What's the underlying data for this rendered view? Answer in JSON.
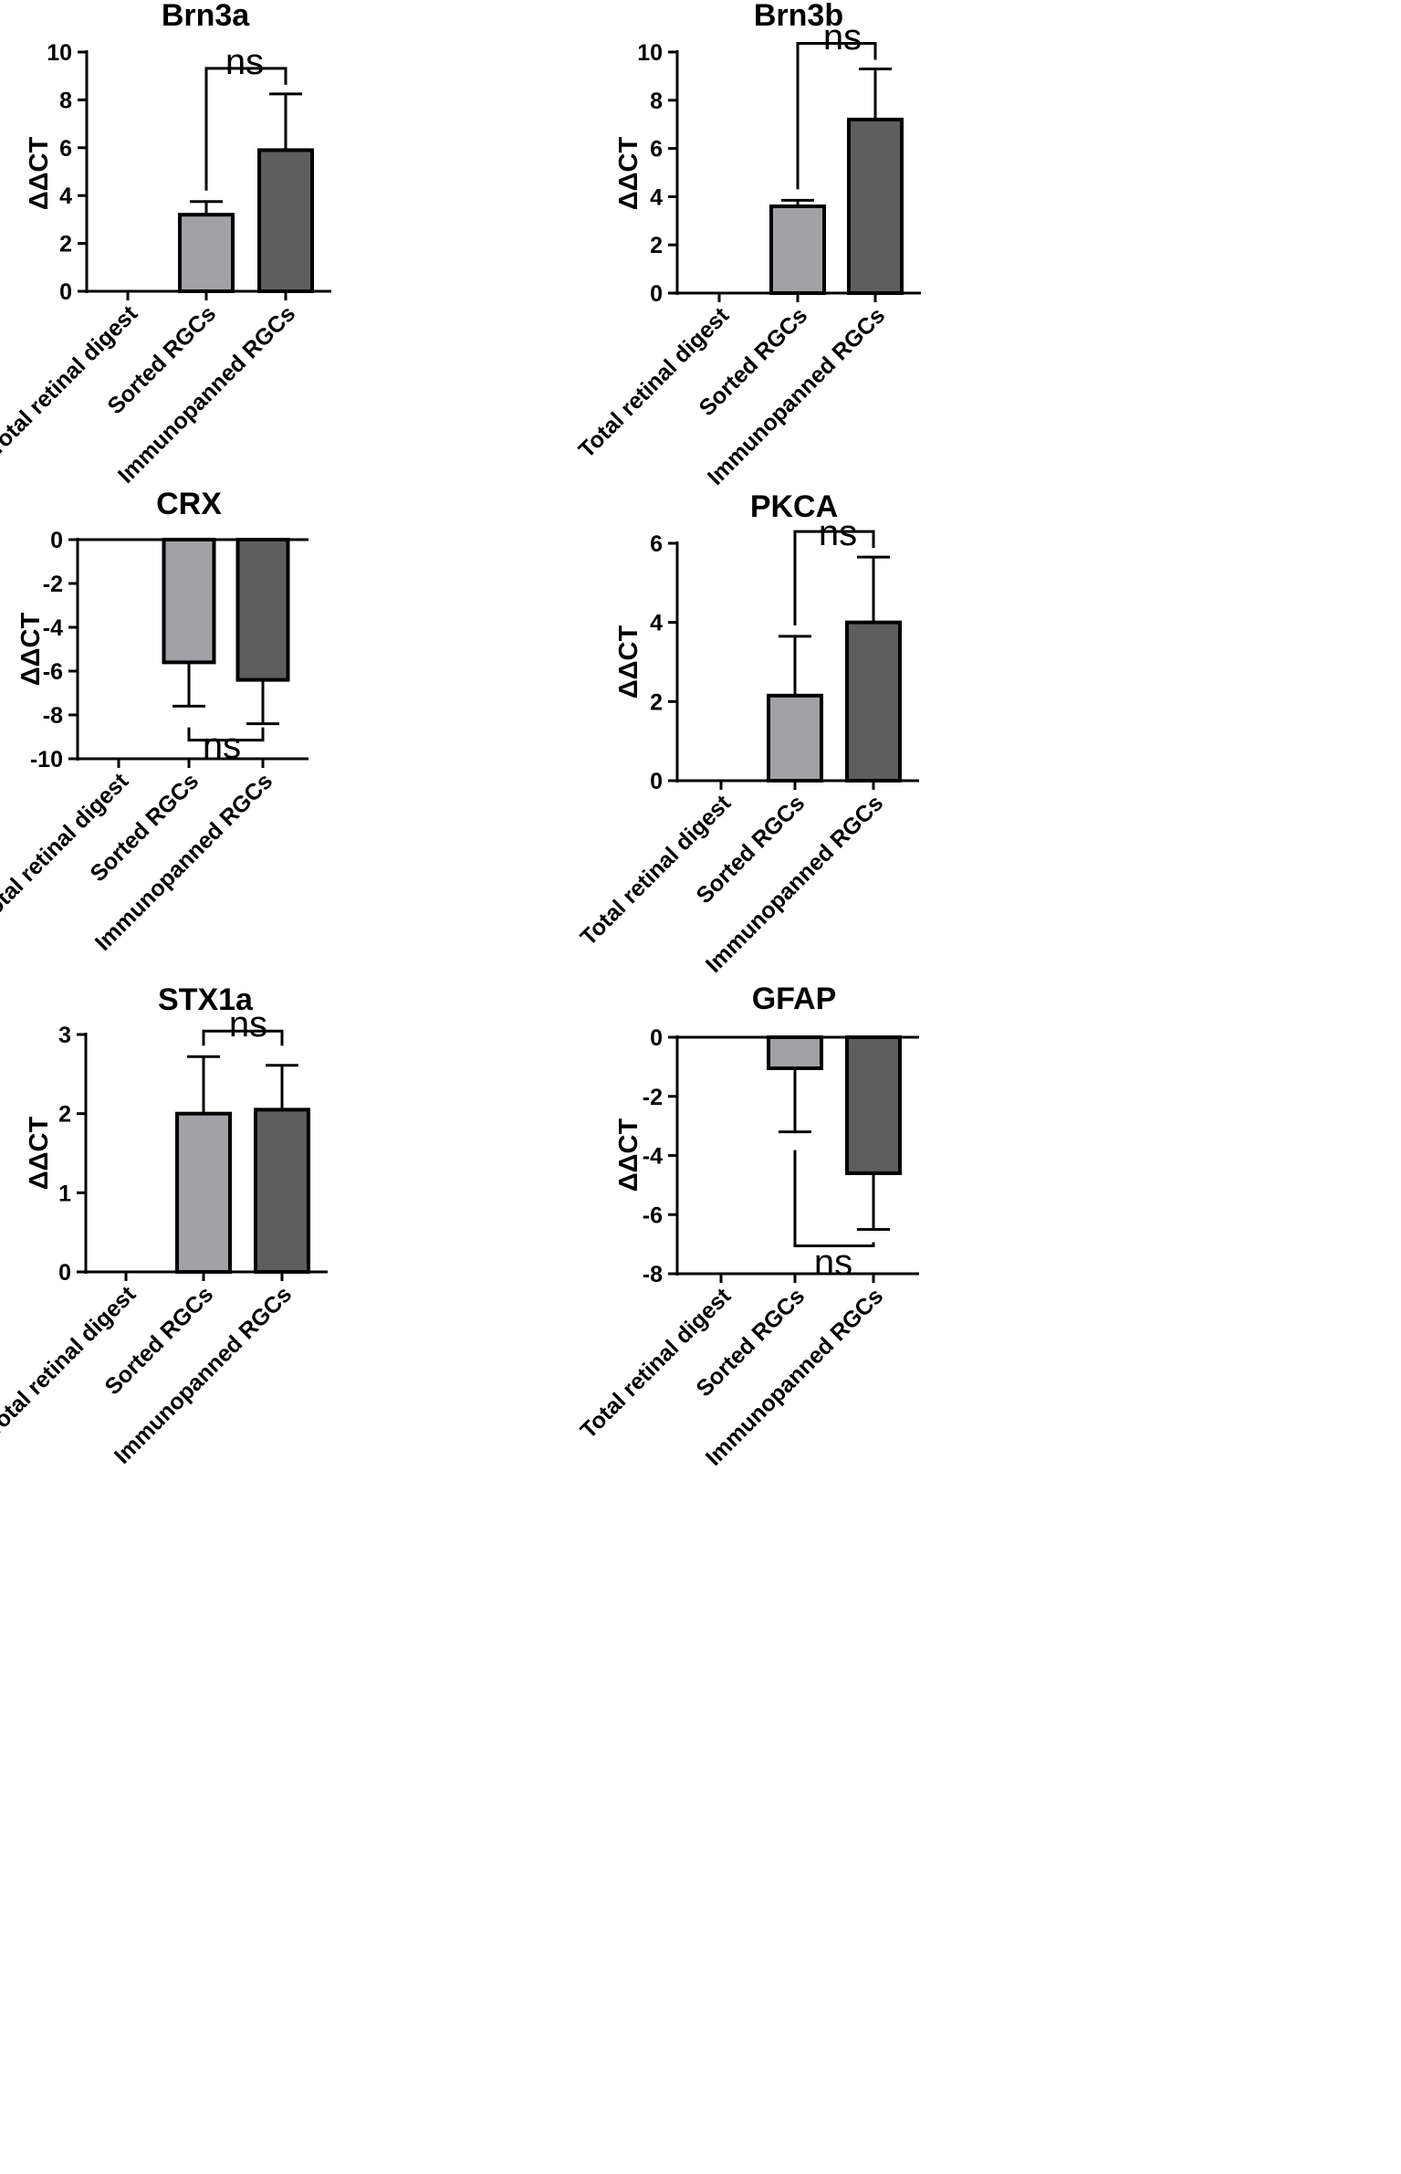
{
  "chart_data": [
    {
      "type": "bar",
      "title": "Brn3a",
      "ylabel": "ΔΔCT",
      "xlabel": "",
      "categories": [
        "Total retinal digest",
        "Sorted RGCs",
        "Immunopanned RGCs"
      ],
      "values": [
        0,
        3.2,
        5.9
      ],
      "errors": [
        0,
        0.55,
        2.35
      ],
      "ylim": [
        0,
        10
      ],
      "yticks": [
        "0",
        "2",
        "4",
        "6",
        "8",
        "10"
      ],
      "colors": [
        "#ffffff",
        "#a2a2a6",
        "#5e5e5e"
      ],
      "significance": {
        "from": 1,
        "to": 2,
        "label": "ns"
      }
    },
    {
      "type": "bar",
      "title": "Brn3b",
      "ylabel": "ΔΔCT",
      "xlabel": "",
      "categories": [
        "Total retinal digest",
        "Sorted RGCs",
        "Immunopanned RGCs"
      ],
      "values": [
        0,
        3.6,
        7.2
      ],
      "errors": [
        0,
        0.25,
        2.1
      ],
      "ylim": [
        0,
        10
      ],
      "yticks": [
        "0",
        "2",
        "4",
        "6",
        "8",
        "10"
      ],
      "colors": [
        "#ffffff",
        "#a2a2a6",
        "#5e5e5e"
      ],
      "significance": {
        "from": 1,
        "to": 2,
        "label": "ns"
      }
    },
    {
      "type": "bar",
      "title": "CRX",
      "ylabel": "ΔΔCT",
      "xlabel": "",
      "categories": [
        "Total retinal digest",
        "Sorted RGCs",
        "Immunopanned RGCs"
      ],
      "values": [
        0,
        -5.6,
        -6.4
      ],
      "errors": [
        0,
        2.0,
        2.0
      ],
      "ylim": [
        -10,
        0
      ],
      "yticks": [
        "-10",
        "-8",
        "-6",
        "-4",
        "-2",
        "0"
      ],
      "colors": [
        "#ffffff",
        "#a2a2a6",
        "#5e5e5e"
      ],
      "significance": {
        "from": 1,
        "to": 2,
        "label": "ns"
      }
    },
    {
      "type": "bar",
      "title": "PKCA",
      "ylabel": "ΔΔCT",
      "xlabel": "",
      "categories": [
        "Total retinal digest",
        "Sorted RGCs",
        "Immunopanned RGCs"
      ],
      "values": [
        0,
        2.15,
        4.0
      ],
      "errors": [
        0,
        1.5,
        1.65
      ],
      "ylim": [
        0,
        6
      ],
      "yticks": [
        "0",
        "2",
        "4",
        "6"
      ],
      "colors": [
        "#ffffff",
        "#a2a2a6",
        "#5e5e5e"
      ],
      "significance": {
        "from": 1,
        "to": 2,
        "label": "ns"
      }
    },
    {
      "type": "bar",
      "title": "STX1a",
      "ylabel": "ΔΔCT",
      "xlabel": "",
      "categories": [
        "Total retinal digest",
        "Sorted RGCs",
        "Immunopanned RGCs"
      ],
      "values": [
        0,
        2.0,
        2.05
      ],
      "errors": [
        0,
        0.72,
        0.56
      ],
      "ylim": [
        0,
        3
      ],
      "yticks": [
        "0",
        "1",
        "2",
        "3"
      ],
      "colors": [
        "#ffffff",
        "#a2a2a6",
        "#5e5e5e"
      ],
      "significance": {
        "from": 1,
        "to": 2,
        "label": "ns"
      }
    },
    {
      "type": "bar",
      "title": "GFAP",
      "ylabel": "ΔΔCT",
      "xlabel": "",
      "categories": [
        "Total retinal digest",
        "Sorted RGCs",
        "Immunopanned RGCs"
      ],
      "values": [
        0,
        -1.05,
        -4.6
      ],
      "errors": [
        0,
        2.15,
        1.9
      ],
      "ylim": [
        -8,
        0
      ],
      "yticks": [
        "-8",
        "-6",
        "-4",
        "-2",
        "0"
      ],
      "colors": [
        "#ffffff",
        "#a2a2a6",
        "#5e5e5e"
      ],
      "significance": {
        "from": 1,
        "to": 2,
        "label": "ns"
      }
    }
  ]
}
